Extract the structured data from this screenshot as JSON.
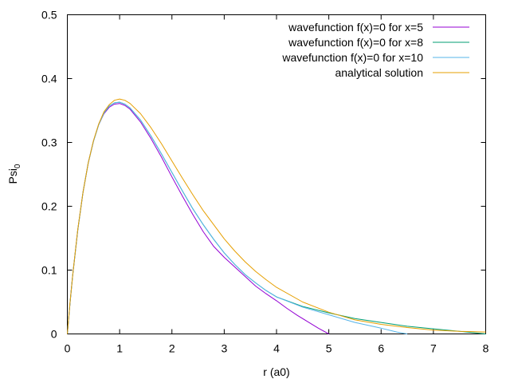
{
  "chart_data": {
    "type": "line",
    "xlabel": "r (a0)",
    "ylabel": "Psi",
    "ylabel_subscript": "0",
    "xlim": [
      0,
      8
    ],
    "ylim": [
      0,
      0.5
    ],
    "xticks": [
      "0",
      "1",
      "2",
      "3",
      "4",
      "5",
      "6",
      "7",
      "8"
    ],
    "yticks": [
      "0",
      "0.1",
      "0.2",
      "0.3",
      "0.4",
      "0.5"
    ],
    "grid": false,
    "legend_position": "top-right",
    "series": [
      {
        "name": "wavefunction f(x)=0 for x=5",
        "color": "#9400d3",
        "x": [
          0,
          0.05,
          0.1,
          0.2,
          0.3,
          0.4,
          0.5,
          0.6,
          0.7,
          0.8,
          0.9,
          1.0,
          1.1,
          1.2,
          1.4,
          1.6,
          1.8,
          2.0,
          2.2,
          2.4,
          2.6,
          2.8,
          3.0,
          3.2,
          3.4,
          3.6,
          3.8,
          4.0,
          4.2,
          4.4,
          4.6,
          4.8,
          5.0
        ],
        "y": [
          0,
          0.047,
          0.09,
          0.163,
          0.222,
          0.268,
          0.302,
          0.328,
          0.345,
          0.355,
          0.36,
          0.361,
          0.358,
          0.352,
          0.332,
          0.306,
          0.277,
          0.246,
          0.216,
          0.187,
          0.16,
          0.137,
          0.12,
          0.105,
          0.09,
          0.075,
          0.063,
          0.052,
          0.04,
          0.029,
          0.019,
          0.009,
          0
        ]
      },
      {
        "name": "wavefunction f(x)=0 for x=8",
        "color": "#009e73",
        "x": [
          0,
          0.05,
          0.1,
          0.2,
          0.3,
          0.4,
          0.5,
          0.6,
          0.7,
          0.8,
          0.9,
          1.0,
          1.1,
          1.2,
          1.4,
          1.6,
          1.8,
          2.0,
          2.2,
          2.4,
          2.6,
          2.8,
          3.0,
          3.2,
          3.4,
          3.6,
          3.8,
          4.0,
          4.5,
          5.0,
          5.5,
          6.0,
          6.5,
          7.0,
          7.5,
          8.0
        ],
        "y": [
          0,
          0.047,
          0.09,
          0.163,
          0.222,
          0.268,
          0.302,
          0.328,
          0.346,
          0.357,
          0.362,
          0.363,
          0.36,
          0.354,
          0.335,
          0.31,
          0.282,
          0.253,
          0.224,
          0.196,
          0.171,
          0.148,
          0.127,
          0.109,
          0.093,
          0.08,
          0.068,
          0.058,
          0.043,
          0.033,
          0.024,
          0.018,
          0.012,
          0.008,
          0.004,
          0
        ]
      },
      {
        "name": "wavefunction f(x)=0 for x=10",
        "color": "#56b4e9",
        "x": [
          0,
          0.05,
          0.1,
          0.2,
          0.3,
          0.4,
          0.5,
          0.6,
          0.7,
          0.8,
          0.9,
          1.0,
          1.1,
          1.2,
          1.4,
          1.6,
          1.8,
          2.0,
          2.2,
          2.4,
          2.6,
          2.8,
          3.0,
          3.2,
          3.4,
          3.6,
          3.8,
          4.0,
          4.5,
          5.0,
          5.5,
          6.0,
          6.3,
          6.5
        ],
        "y": [
          0,
          0.047,
          0.09,
          0.163,
          0.222,
          0.268,
          0.302,
          0.328,
          0.346,
          0.357,
          0.362,
          0.363,
          0.36,
          0.354,
          0.335,
          0.31,
          0.282,
          0.253,
          0.224,
          0.196,
          0.171,
          0.148,
          0.127,
          0.109,
          0.093,
          0.08,
          0.068,
          0.058,
          0.042,
          0.03,
          0.018,
          0.009,
          0.003,
          0
        ]
      },
      {
        "name": "analytical solution",
        "color": "#e69f00",
        "x": [
          0,
          0.05,
          0.1,
          0.2,
          0.3,
          0.4,
          0.5,
          0.6,
          0.7,
          0.8,
          0.9,
          1.0,
          1.1,
          1.2,
          1.4,
          1.6,
          1.8,
          2.0,
          2.2,
          2.4,
          2.6,
          2.8,
          3.0,
          3.2,
          3.4,
          3.6,
          3.8,
          4.0,
          4.5,
          5.0,
          5.5,
          6.0,
          6.5,
          7.0,
          7.5,
          8.0
        ],
        "y": [
          0,
          0.048,
          0.09,
          0.164,
          0.222,
          0.268,
          0.303,
          0.329,
          0.348,
          0.359,
          0.366,
          0.368,
          0.366,
          0.361,
          0.345,
          0.323,
          0.298,
          0.271,
          0.244,
          0.218,
          0.193,
          0.171,
          0.149,
          0.13,
          0.113,
          0.098,
          0.085,
          0.073,
          0.05,
          0.034,
          0.022,
          0.015,
          0.01,
          0.006,
          0.004,
          0.003
        ]
      }
    ]
  }
}
